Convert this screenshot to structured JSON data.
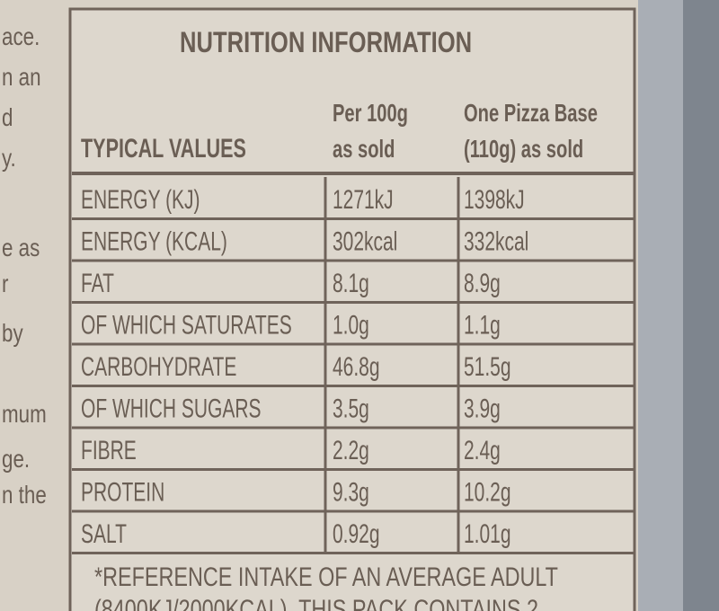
{
  "side_text": [
    "ace.",
    "n an",
    "d",
    "y.",
    "e as",
    "r",
    "by",
    "mum",
    "ge.",
    "n the"
  ],
  "title": "NUTRITION INFORMATION",
  "header": {
    "label": "TYPICAL VALUES",
    "per_100g": [
      "Per 100g",
      "as sold"
    ],
    "per_base": [
      "One Pizza Base",
      "(110g) as sold"
    ]
  },
  "rows": [
    [
      "ENERGY (KJ)",
      "1271kJ",
      "1398kJ"
    ],
    [
      "ENERGY (KCAL)",
      "302kcal",
      "332kcal"
    ],
    [
      "FAT",
      "8.1g",
      "8.9g"
    ],
    [
      "OF WHICH SATURATES",
      "1.0g",
      "1.1g"
    ],
    [
      "CARBOHYDRATE",
      "46.8g",
      "51.5g"
    ],
    [
      "OF WHICH SUGARS",
      "3.5g",
      "3.9g"
    ],
    [
      "FIBRE",
      "2.2g",
      "2.4g"
    ],
    [
      "PROTEIN",
      "9.3g",
      "10.2g"
    ],
    [
      "SALT",
      "0.92g",
      "1.01g"
    ]
  ],
  "footnote": [
    "*REFERENCE INTAKE OF AN AVERAGE ADULT",
    "(8400KJ/2000KCAL). THIS PACK CONTAINS 2"
  ]
}
